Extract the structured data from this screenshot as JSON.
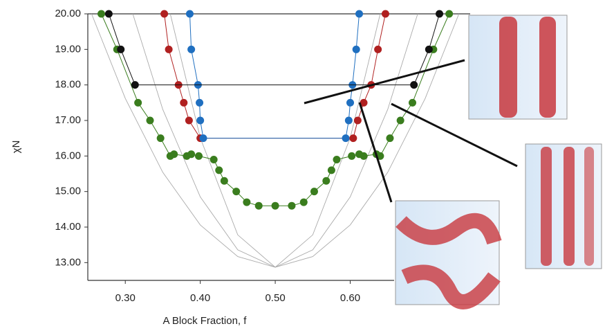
{
  "chart_data": {
    "type": "scatter",
    "x_label": "A Block Fraction, f",
    "y_label": "χN",
    "xlim": [
      0.25,
      0.76
    ],
    "ylim": [
      12.5,
      20.0
    ],
    "xticks": [
      {
        "value": 0.3,
        "label": "0.30"
      },
      {
        "value": 0.4,
        "label": "0.40"
      },
      {
        "value": 0.5,
        "label": "0.50"
      },
      {
        "value": 0.6,
        "label": "0.60"
      }
    ],
    "yticks": [
      {
        "value": 13,
        "label": "13.00"
      },
      {
        "value": 14,
        "label": "14.00"
      },
      {
        "value": 15,
        "label": "15.00"
      },
      {
        "value": 16,
        "label": "16.00"
      },
      {
        "value": 17,
        "label": "17.00"
      },
      {
        "value": 18,
        "label": "18.00"
      },
      {
        "value": 19,
        "label": "19.00"
      },
      {
        "value": 20,
        "label": "20.00"
      }
    ],
    "curves": [
      {
        "color": "#aaaaaa",
        "x": [
          0.255,
          0.3,
          0.35,
          0.4,
          0.45,
          0.5,
          0.55,
          0.6,
          0.65,
          0.7,
          0.745
        ],
        "values": [
          20.0,
          17.62,
          15.54,
          14.06,
          13.17,
          12.87,
          13.17,
          14.06,
          15.54,
          17.62,
          20.0
        ]
      },
      {
        "color": "#aaaaaa",
        "x": [
          0.31,
          0.35,
          0.4,
          0.45,
          0.5,
          0.55,
          0.6,
          0.65,
          0.69
        ],
        "values": [
          20.0,
          17.31,
          14.85,
          13.36,
          12.87,
          13.36,
          14.85,
          17.31,
          20.0
        ]
      },
      {
        "color": "#aaaaaa",
        "x": [
          0.36,
          0.4,
          0.45,
          0.5,
          0.55,
          0.6,
          0.64
        ],
        "values": [
          20.0,
          16.51,
          13.78,
          12.87,
          13.78,
          16.51,
          20.0
        ]
      }
    ],
    "series": [
      {
        "color": "#3a7d1e",
        "x": [
          0.268,
          0.289,
          0.317,
          0.333,
          0.347,
          0.36,
          0.365,
          0.382,
          0.388,
          0.398,
          0.418,
          0.425,
          0.432,
          0.448,
          0.462,
          0.478,
          0.5,
          0.522,
          0.538,
          0.552,
          0.568,
          0.575,
          0.582,
          0.602,
          0.612,
          0.618,
          0.635,
          0.64,
          0.653,
          0.667,
          0.683,
          0.711,
          0.732
        ],
        "values": [
          20.0,
          19.0,
          17.5,
          17.0,
          16.5,
          16.0,
          16.05,
          16.0,
          16.05,
          16.0,
          15.9,
          15.6,
          15.3,
          15.0,
          14.7,
          14.6,
          14.6,
          14.6,
          14.7,
          15.0,
          15.3,
          15.6,
          15.9,
          16.0,
          16.05,
          16.0,
          16.05,
          16.0,
          16.5,
          17.0,
          17.5,
          19.0,
          20.0
        ]
      },
      {
        "color": "#b02020",
        "x": [
          0.352,
          0.358,
          0.371,
          0.378,
          0.385,
          0.4,
          0.604,
          0.61,
          0.618,
          0.628,
          0.637,
          0.647
        ],
        "values": [
          20.0,
          19.0,
          18.0,
          17.5,
          17.0,
          16.5,
          16.5,
          17.0,
          17.5,
          18.0,
          19.0,
          20.0
        ]
      },
      {
        "color": "#1f6fc0",
        "x": [
          0.386,
          0.388,
          0.397,
          0.399,
          0.4,
          0.404,
          0.594,
          0.598,
          0.6,
          0.603,
          0.608,
          0.612
        ],
        "values": [
          20.0,
          19.0,
          18.0,
          17.5,
          17.0,
          16.5,
          16.5,
          17.0,
          17.5,
          18.0,
          19.0,
          20.0
        ]
      },
      {
        "color": "#111111",
        "x": [
          0.278,
          0.294,
          0.313,
          0.685,
          0.705,
          0.719
        ],
        "values": [
          20.0,
          19.0,
          18.0,
          18.0,
          19.0,
          20.0
        ]
      }
    ]
  }
}
